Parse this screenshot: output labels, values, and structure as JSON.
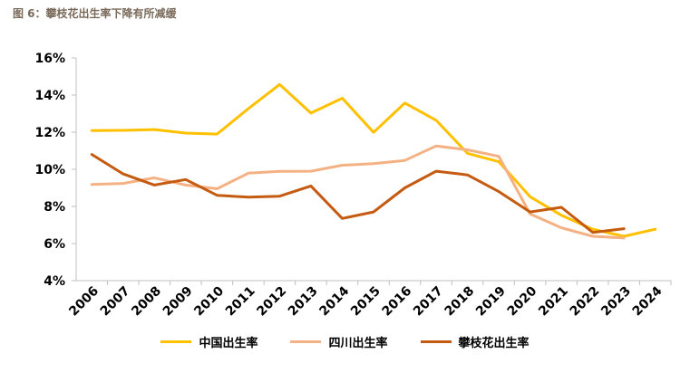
{
  "caption": "图 6：攀枝花出生率下降有所减缓",
  "chart_data": {
    "type": "line",
    "title": "",
    "xlabel": "",
    "ylabel": "",
    "x": [
      "2006",
      "2007",
      "2008",
      "2009",
      "2010",
      "2011",
      "2012",
      "2013",
      "2014",
      "2015",
      "2016",
      "2017",
      "2018",
      "2019",
      "2020",
      "2021",
      "2022",
      "2023",
      "2024"
    ],
    "ylim": [
      4,
      16
    ],
    "yticks": [
      "4%",
      "6%",
      "8%",
      "10%",
      "12%",
      "14%",
      "16%"
    ],
    "grid": false,
    "legend_position": "bottom",
    "series": [
      {
        "name": "中国出生率",
        "color": "#FFC000",
        "values": [
          12.09,
          12.1,
          12.14,
          11.95,
          11.9,
          13.27,
          14.57,
          13.03,
          13.83,
          11.99,
          13.57,
          12.64,
          10.86,
          10.41,
          8.52,
          7.52,
          6.77,
          6.39,
          6.77
        ]
      },
      {
        "name": "四川出生率",
        "color": "#F4B183",
        "values": [
          9.18,
          9.24,
          9.54,
          9.15,
          8.95,
          9.79,
          9.89,
          9.9,
          10.22,
          10.3,
          10.48,
          11.26,
          11.05,
          10.7,
          7.6,
          6.85,
          6.39,
          6.3,
          null
        ]
      },
      {
        "name": "攀枝花出生率",
        "color": "#C55A11",
        "values": [
          10.8,
          9.75,
          9.15,
          9.45,
          8.6,
          8.5,
          8.55,
          9.1,
          7.35,
          7.7,
          9.0,
          9.9,
          9.7,
          8.8,
          7.7,
          7.95,
          6.6,
          6.8,
          null
        ]
      }
    ]
  }
}
